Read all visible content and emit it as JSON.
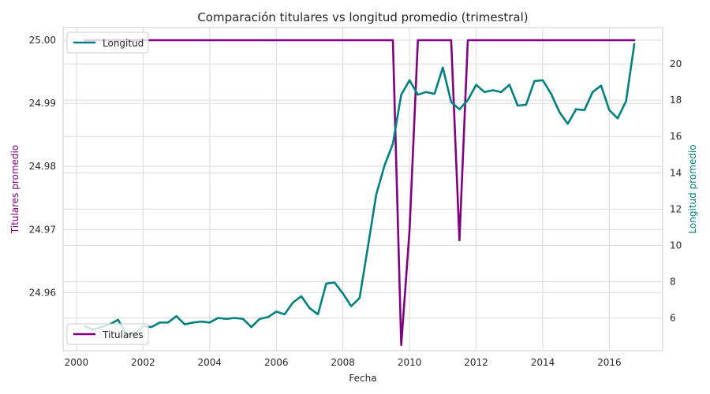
{
  "chart_data": {
    "type": "line",
    "title": "Comparación titulares vs longitud promedio (trimestral)",
    "xlabel": "Fecha",
    "ylabel_left": "Titulares promedio",
    "ylabel_right": "Longitud promedio",
    "grid": true,
    "x_range": [
      1999.6,
      2017.6
    ],
    "x_ticks": [
      2000,
      2002,
      2004,
      2006,
      2008,
      2010,
      2012,
      2014,
      2016
    ],
    "x_tick_labels": [
      "2000",
      "2002",
      "2004",
      "2006",
      "2008",
      "2010",
      "2012",
      "2014",
      "2016"
    ],
    "left_axis": {
      "ylim": [
        24.9508,
        25.002
      ],
      "ticks": [
        24.96,
        24.97,
        24.98,
        24.99,
        25.0
      ],
      "tick_labels": [
        "24.96",
        "24.97",
        "24.98",
        "24.99",
        "25.00"
      ]
    },
    "right_axis": {
      "ylim": [
        4.2,
        22.0
      ],
      "ticks": [
        6,
        8,
        10,
        12,
        14,
        16,
        18,
        20
      ],
      "tick_labels": [
        "6",
        "8",
        "10",
        "12",
        "14",
        "16",
        "18",
        "20"
      ]
    },
    "legend": [
      {
        "name": "Longitud",
        "placement": "upper-left",
        "color": "#008080"
      },
      {
        "name": "Titulares",
        "placement": "lower-left",
        "color": "#800080"
      }
    ],
    "series": [
      {
        "name": "Titulares",
        "axis": "left",
        "color": "#800080",
        "x": [
          2000.25,
          2009.5,
          2009.75,
          2010.0,
          2010.25,
          2011.25,
          2011.5,
          2011.75,
          2016.75
        ],
        "values": [
          25.0,
          25.0,
          24.9517,
          24.9698,
          25.0,
          25.0,
          24.9683,
          25.0,
          25.0
        ]
      },
      {
        "name": "Longitud",
        "axis": "right",
        "color": "#008080",
        "x": [
          2000.25,
          2000.5,
          2000.75,
          2001.0,
          2001.25,
          2001.5,
          2001.75,
          2002.0,
          2002.25,
          2002.5,
          2002.75,
          2003.0,
          2003.25,
          2003.5,
          2003.75,
          2004.0,
          2004.25,
          2004.5,
          2004.75,
          2005.0,
          2005.25,
          2005.5,
          2005.75,
          2006.0,
          2006.25,
          2006.5,
          2006.75,
          2007.0,
          2007.25,
          2007.5,
          2007.75,
          2008.0,
          2008.25,
          2008.5,
          2008.75,
          2009.0,
          2009.25,
          2009.5,
          2009.75,
          2010.0,
          2010.25,
          2010.5,
          2010.75,
          2011.0,
          2011.25,
          2011.5,
          2011.75,
          2012.0,
          2012.25,
          2012.5,
          2012.75,
          2013.0,
          2013.25,
          2013.5,
          2013.75,
          2014.0,
          2014.25,
          2014.5,
          2014.75,
          2015.0,
          2015.25,
          2015.5,
          2015.75,
          2016.0,
          2016.25,
          2016.5,
          2016.75
        ],
        "values": [
          5.55,
          5.35,
          5.5,
          5.65,
          5.9,
          5.1,
          5.1,
          5.55,
          5.5,
          5.75,
          5.75,
          6.1,
          5.65,
          5.75,
          5.8,
          5.75,
          6.0,
          5.95,
          6.0,
          5.95,
          5.5,
          5.95,
          6.05,
          6.35,
          6.2,
          6.85,
          7.2,
          6.55,
          6.2,
          7.9,
          7.95,
          7.35,
          6.65,
          7.1,
          9.9,
          12.8,
          14.4,
          15.6,
          18.3,
          19.1,
          18.3,
          18.45,
          18.35,
          19.8,
          17.9,
          17.5,
          18.0,
          18.85,
          18.45,
          18.55,
          18.45,
          18.85,
          17.7,
          17.75,
          19.05,
          19.1,
          18.35,
          17.35,
          16.7,
          17.5,
          17.45,
          18.45,
          18.8,
          17.45,
          17.0,
          17.95,
          21.1
        ]
      }
    ]
  }
}
